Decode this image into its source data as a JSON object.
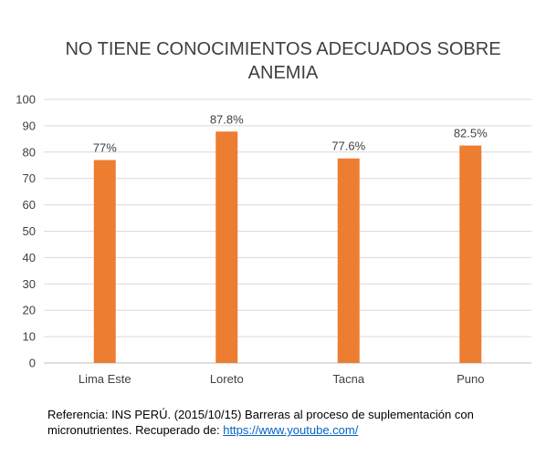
{
  "chart_data": {
    "type": "bar",
    "title_lines": [
      "NO TIENE CONOCIMIENTOS ADECUADOS SOBRE",
      "ANEMIA"
    ],
    "categories": [
      "Lima Este",
      "Loreto",
      "Tacna",
      "Puno"
    ],
    "values": [
      77,
      87.8,
      77.6,
      82.5
    ],
    "data_labels": [
      "77%",
      "87.8%",
      "77.6%",
      "82.5%"
    ],
    "ylim": [
      0,
      100
    ],
    "yticks": [
      0,
      10,
      20,
      30,
      40,
      50,
      60,
      70,
      80,
      90,
      100
    ],
    "grid": true,
    "legend": "none",
    "bar_color": "#ed7d31"
  },
  "reference": {
    "line1": "Referencia: INS PERÚ. (2015/10/15) Barreras al proceso de suplementación con",
    "line2_prefix": "micronutrientes. Recuperado de: ",
    "link_text": "https://www.youtube.com/"
  }
}
